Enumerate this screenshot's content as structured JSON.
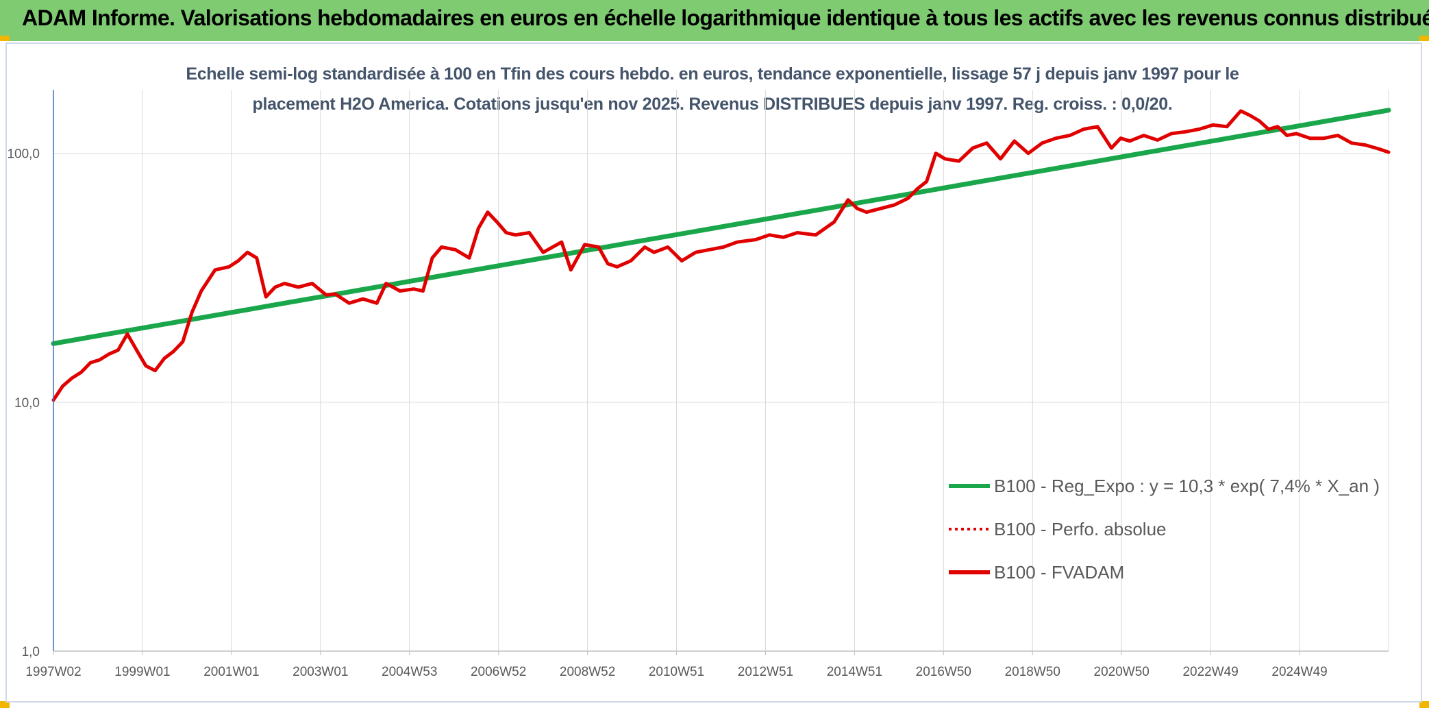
{
  "header": {
    "title": "ADAM Informe. Valorisations hebdomadaires en euros en échelle logarithmique identique à tous les actifs avec les revenus connus distribués"
  },
  "chart_data": {
    "type": "line",
    "title_line1": "Echelle semi-log standardisée à 100 en Tfin des cours hebdo. en euros, tendance exponentielle, lissage 57 j depuis janv 1997 pour le",
    "title_line2": "placement H2O America. Cotations jusqu'en nov 2025. Revenus DISTRIBUES depuis janv 1997. Reg. croiss. : 0,0/20.",
    "y_scale": "log",
    "ylim": [
      1,
      180
    ],
    "y_ticks": [
      "1,0",
      "10,0",
      "100,0"
    ],
    "x_range": [
      1997.0,
      2025.9
    ],
    "x_ticks": [
      "1997W02",
      "1999W01",
      "2001W01",
      "2003W01",
      "2004W53",
      "2006W52",
      "2008W52",
      "2010W51",
      "2012W51",
      "2014W51",
      "2016W50",
      "2018W50",
      "2020W50",
      "2022W49",
      "2024W49"
    ],
    "grid": true,
    "legend_position": "bottom-right",
    "series": [
      {
        "name": "B100 - Reg_Expo : y = 10,3 * exp( 7,4% *  X_an )",
        "color": "#1aa64a",
        "style": "solid",
        "x": [
          1997.0,
          2025.9
        ],
        "y": [
          17.2,
          149
        ]
      },
      {
        "name": "B100 - Perfo. absolue",
        "color": "#e00000",
        "style": "dotted",
        "x": [],
        "y": []
      },
      {
        "name": "B100 - FVADAM",
        "color": "#e00000",
        "style": "solid",
        "x": [
          1997.0,
          1997.2,
          1997.4,
          1997.6,
          1997.8,
          1998.0,
          1998.2,
          1998.4,
          1998.6,
          1998.8,
          1999.0,
          1999.2,
          1999.4,
          1999.6,
          1999.8,
          2000.0,
          2000.2,
          2000.5,
          2000.8,
          2001.0,
          2001.2,
          2001.4,
          2001.6,
          2001.8,
          2002.0,
          2002.3,
          2002.6,
          2002.9,
          2003.1,
          2003.4,
          2003.7,
          2004.0,
          2004.2,
          2004.5,
          2004.8,
          2005.0,
          2005.2,
          2005.4,
          2005.7,
          2006.0,
          2006.2,
          2006.4,
          2006.6,
          2006.8,
          2007.0,
          2007.3,
          2007.6,
          2008.0,
          2008.2,
          2008.5,
          2008.8,
          2009.0,
          2009.2,
          2009.5,
          2009.8,
          2010.0,
          2010.3,
          2010.6,
          2010.9,
          2011.2,
          2011.5,
          2011.8,
          2012.2,
          2012.5,
          2012.8,
          2013.1,
          2013.5,
          2013.9,
          2014.2,
          2014.4,
          2014.6,
          2014.9,
          2015.2,
          2015.5,
          2015.7,
          2015.9,
          2016.1,
          2016.3,
          2016.6,
          2016.9,
          2017.2,
          2017.5,
          2017.8,
          2018.1,
          2018.4,
          2018.7,
          2019.0,
          2019.3,
          2019.6,
          2019.9,
          2020.1,
          2020.3,
          2020.6,
          2020.9,
          2021.2,
          2021.5,
          2021.8,
          2022.1,
          2022.4,
          2022.7,
          2022.9,
          2023.1,
          2023.3,
          2023.5,
          2023.7,
          2023.9,
          2024.2,
          2024.5,
          2024.8,
          2025.1,
          2025.4,
          2025.7,
          2025.9
        ],
        "y": [
          10.2,
          11.6,
          12.5,
          13.2,
          14.4,
          14.8,
          15.6,
          16.2,
          18.8,
          16.2,
          14.0,
          13.4,
          15.0,
          16.0,
          17.5,
          23.0,
          28.0,
          34.0,
          35.0,
          37.0,
          40.0,
          38.0,
          26.5,
          29.0,
          30.0,
          29.0,
          30.0,
          27.0,
          27.2,
          25.0,
          26.0,
          25.0,
          30.0,
          28.0,
          28.5,
          28.0,
          38.0,
          42.0,
          41.0,
          38.0,
          50.0,
          58.0,
          53.0,
          48.0,
          47.0,
          48.0,
          40.0,
          44.0,
          34.0,
          43.0,
          42.0,
          36.0,
          35.0,
          37.0,
          42.0,
          40.0,
          42.0,
          37.0,
          40.0,
          41.0,
          42.0,
          44.0,
          45.0,
          47.0,
          46.0,
          48.0,
          47.0,
          53.0,
          65.0,
          60.0,
          58.0,
          60.0,
          62.0,
          66.0,
          72.0,
          77.0,
          100.0,
          95.0,
          93.0,
          105.0,
          110.0,
          95.0,
          112.0,
          100.0,
          110.0,
          115.0,
          118.0,
          125.0,
          128.0,
          105.0,
          115.0,
          112.0,
          118.0,
          113.0,
          120.0,
          122.0,
          125.0,
          130.0,
          128.0,
          148.0,
          142.0,
          135.0,
          125.0,
          128.0,
          118.0,
          120.0,
          115.0,
          115.0,
          118.0,
          110.0,
          108.0,
          104.0,
          101.0
        ]
      }
    ]
  }
}
